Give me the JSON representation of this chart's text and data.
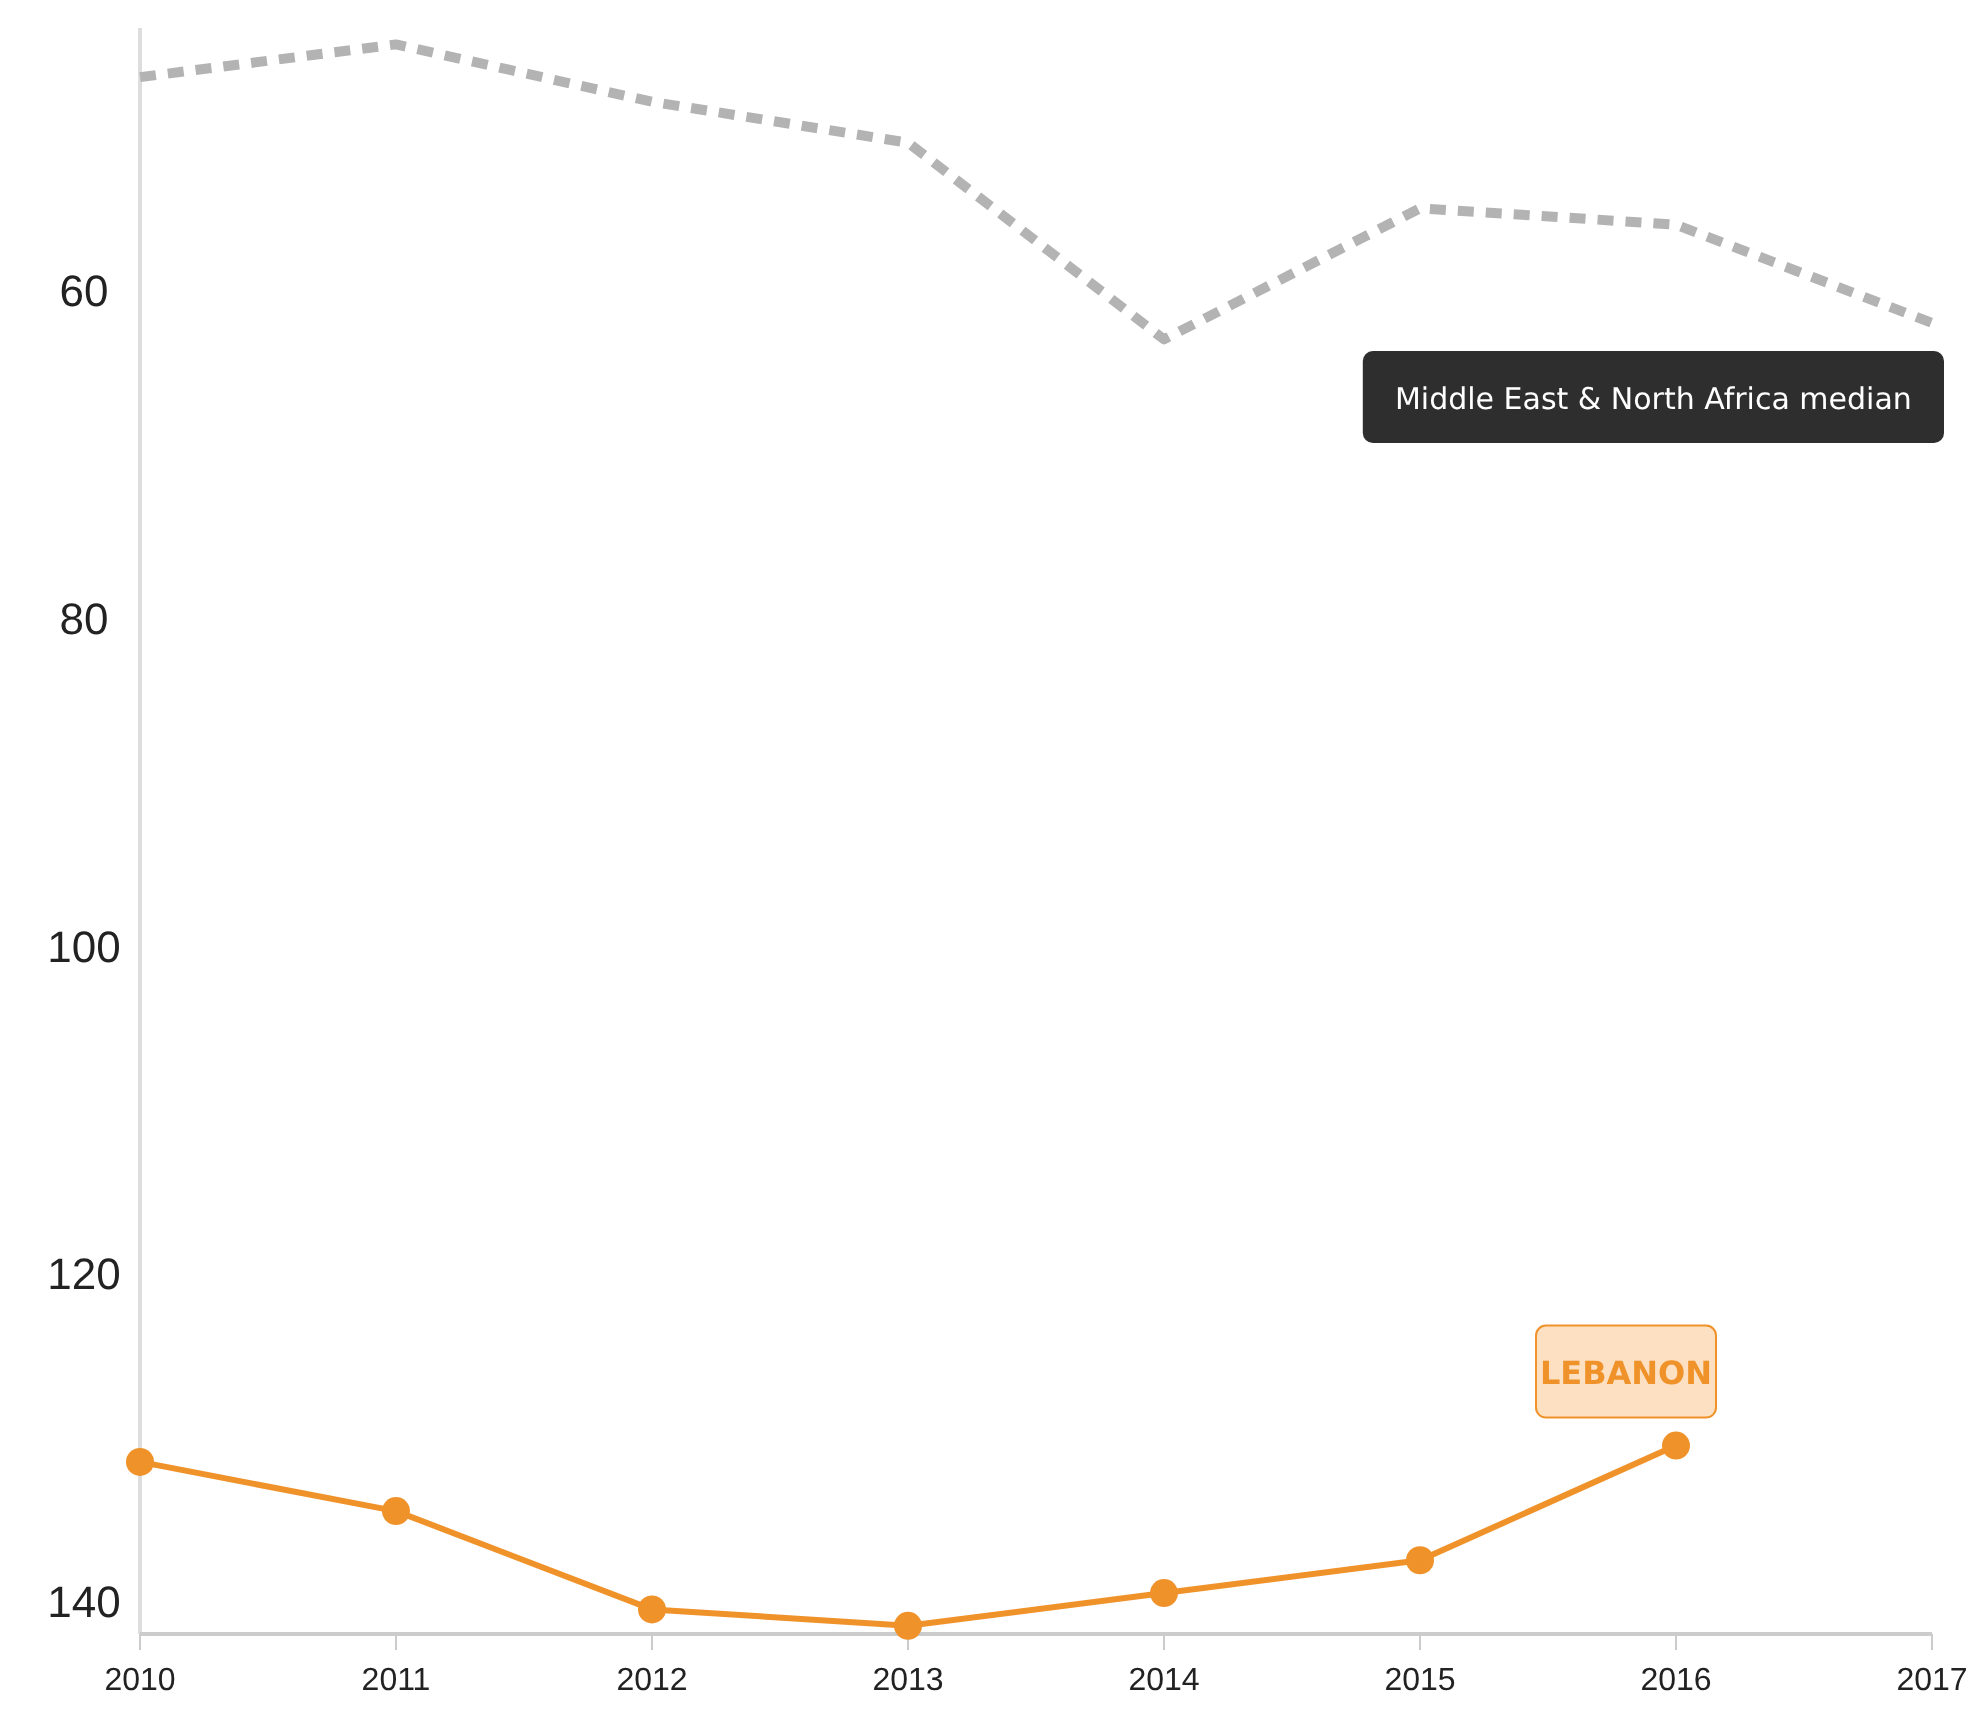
{
  "chart_data": {
    "type": "line",
    "x": [
      2010,
      2011,
      2012,
      2013,
      2014,
      2015,
      2016,
      2017
    ],
    "series": [
      {
        "name": "Middle East & North Africa median",
        "color": "#b3b3b3",
        "line_style": "dotted",
        "marker": "none",
        "values": [
          47,
          45,
          48.5,
          51,
          63,
          55,
          56,
          62
        ]
      },
      {
        "name": "LEBANON",
        "color": "#f0922a",
        "line_style": "solid",
        "marker": "circle",
        "values": [
          131.5,
          134.5,
          140.5,
          141.5,
          139.5,
          137.5,
          130.5,
          null
        ]
      }
    ],
    "xlim": [
      2010,
      2017
    ],
    "xticks": [
      2010,
      2011,
      2012,
      2013,
      2014,
      2015,
      2016,
      2017
    ],
    "ylim": [
      142,
      44
    ],
    "yticks": [
      60,
      80,
      100,
      120,
      140
    ],
    "grid": false
  }
}
